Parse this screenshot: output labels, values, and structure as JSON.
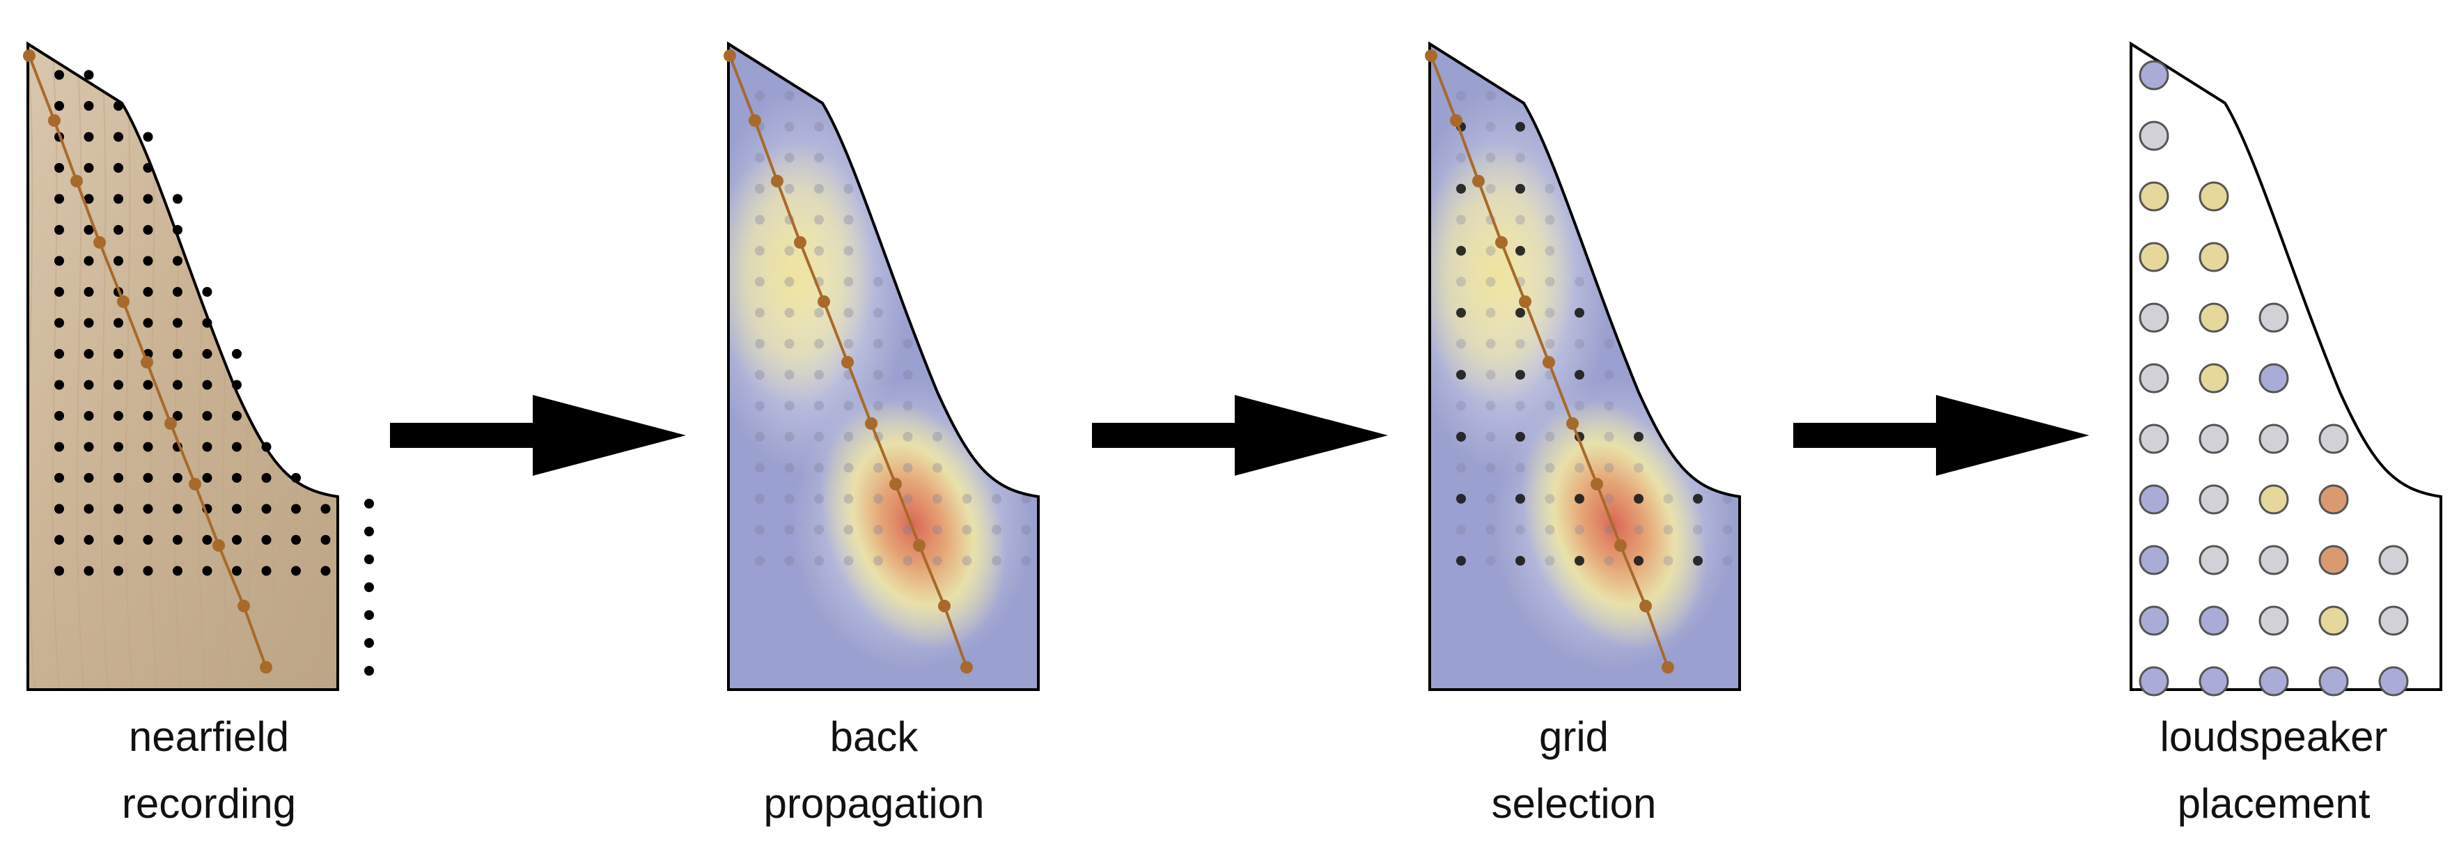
{
  "panels": [
    {
      "id": "nearfield",
      "line1": "nearfield",
      "line2": "recording"
    },
    {
      "id": "backprop",
      "line1": "back",
      "line2": "propagation"
    },
    {
      "id": "grid",
      "line1": "grid",
      "line2": "selection"
    },
    {
      "id": "loudspeaker",
      "line1": "loudspeaker",
      "line2": "placement"
    }
  ],
  "colors": {
    "outline": "#000000",
    "wood": "#cdb79e",
    "node_line": "#a86a2a",
    "field_low": "#9aa0cf",
    "field_mid": "#efe6a0",
    "field_high": "#d9604f",
    "arrow": "#000000"
  }
}
